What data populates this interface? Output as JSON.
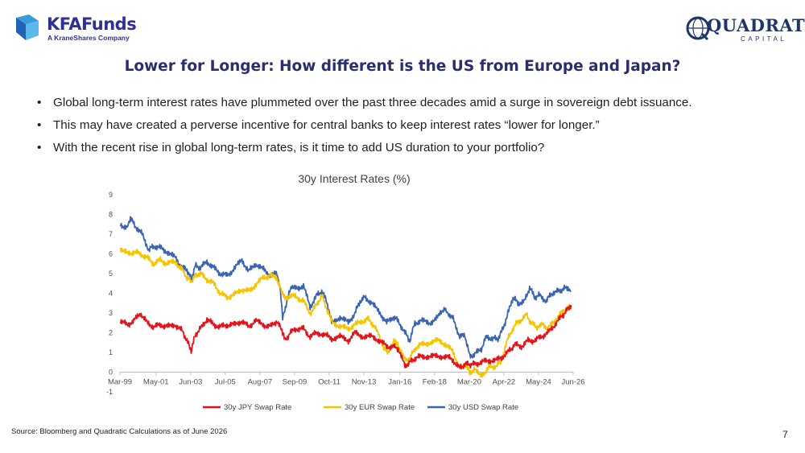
{
  "branding": {
    "left_logo_name": "KFAFunds",
    "left_logo_tagline": "A KraneShares Company",
    "right_logo_name": "QUADRATIC",
    "right_logo_tagline": "CAPITAL"
  },
  "slide": {
    "title": "Lower for Longer: How different is the US from Europe and Japan?",
    "bullets": [
      "Global long-term interest rates have plummeted over the past three decades amid a surge in sovereign debt issuance.",
      "This may have created a perverse incentive for central banks to keep interest rates “lower for longer.”",
      "With the recent rise in global long-term rates, is it time to add US duration to your portfolio?"
    ],
    "source": "Source: Bloomberg and Quadratic Calculations as of June 2026",
    "page_number": "7"
  },
  "colors": {
    "jpy": "#e3141b",
    "eur": "#f5c400",
    "usd": "#3b64b0",
    "title": "#2a2d6e",
    "logo": "#2e3192"
  },
  "chart_data": {
    "type": "line",
    "title": "30y Interest Rates (%)",
    "xlabel": "",
    "ylabel": "",
    "x_ticks": [
      "Mar-99",
      "May-01",
      "Jun-03",
      "Jul-05",
      "Aug-07",
      "Sep-09",
      "Oct-11",
      "Nov-13",
      "Jan-16",
      "Feb-18",
      "Mar-20",
      "Apr-22",
      "May-24",
      "Jun-26"
    ],
    "ylim": [
      -1,
      9
    ],
    "y_ticks": [
      "-1",
      "0",
      "1",
      "2",
      "3",
      "4",
      "5",
      "6",
      "7",
      "8",
      "9"
    ],
    "grid": false,
    "legend_position": "bottom",
    "x_is_decimal_year": true,
    "series": [
      {
        "name": "30y JPY Swap Rate",
        "color_key": "jpy",
        "points": [
          [
            1999.2,
            2.6
          ],
          [
            1999.6,
            2.4
          ],
          [
            2000.0,
            2.6
          ],
          [
            2000.4,
            3.0
          ],
          [
            2000.8,
            2.5
          ],
          [
            2001.2,
            2.3
          ],
          [
            2001.6,
            2.4
          ],
          [
            2002.0,
            2.3
          ],
          [
            2002.5,
            2.4
          ],
          [
            2002.9,
            2.1
          ],
          [
            2003.2,
            1.6
          ],
          [
            2003.45,
            1.1
          ],
          [
            2003.7,
            1.9
          ],
          [
            2004.0,
            2.2
          ],
          [
            2004.4,
            2.7
          ],
          [
            2004.8,
            2.4
          ],
          [
            2005.2,
            2.3
          ],
          [
            2005.6,
            2.4
          ],
          [
            2006.0,
            2.4
          ],
          [
            2006.5,
            2.6
          ],
          [
            2006.9,
            2.3
          ],
          [
            2007.3,
            2.6
          ],
          [
            2007.8,
            2.4
          ],
          [
            2008.2,
            2.3
          ],
          [
            2008.6,
            2.6
          ],
          [
            2008.9,
            2.1
          ],
          [
            2009.1,
            1.6
          ],
          [
            2009.4,
            2.0
          ],
          [
            2009.8,
            2.2
          ],
          [
            2010.2,
            2.2
          ],
          [
            2010.6,
            1.8
          ],
          [
            2011.0,
            2.0
          ],
          [
            2011.5,
            1.9
          ],
          [
            2011.9,
            1.7
          ],
          [
            2012.4,
            1.8
          ],
          [
            2012.9,
            1.6
          ],
          [
            2013.3,
            2.0
          ],
          [
            2013.8,
            1.8
          ],
          [
            2014.3,
            1.8
          ],
          [
            2014.8,
            1.6
          ],
          [
            2015.2,
            1.3
          ],
          [
            2015.6,
            1.3
          ],
          [
            2015.9,
            1.2
          ],
          [
            2016.3,
            0.3
          ],
          [
            2016.6,
            0.5
          ],
          [
            2016.9,
            0.7
          ],
          [
            2017.3,
            0.8
          ],
          [
            2017.8,
            0.8
          ],
          [
            2018.3,
            0.8
          ],
          [
            2018.8,
            0.8
          ],
          [
            2019.2,
            0.6
          ],
          [
            2019.6,
            0.2
          ],
          [
            2019.9,
            0.4
          ],
          [
            2020.2,
            0.4
          ],
          [
            2020.5,
            0.4
          ],
          [
            2020.9,
            0.5
          ],
          [
            2021.3,
            0.6
          ],
          [
            2021.8,
            0.6
          ],
          [
            2022.2,
            0.8
          ],
          [
            2022.6,
            1.1
          ],
          [
            2022.9,
            1.4
          ],
          [
            2023.3,
            1.3
          ],
          [
            2023.7,
            1.6
          ],
          [
            2024.1,
            1.6
          ],
          [
            2024.5,
            1.8
          ],
          [
            2024.9,
            2.0
          ],
          [
            2025.3,
            2.4
          ],
          [
            2025.7,
            2.8
          ],
          [
            2026.0,
            3.1
          ],
          [
            2026.3,
            3.4
          ]
        ]
      },
      {
        "name": "30y EUR Swap Rate",
        "color_key": "eur",
        "points": [
          [
            1999.2,
            6.3
          ],
          [
            1999.6,
            6.0
          ],
          [
            2000.0,
            6.1
          ],
          [
            2000.4,
            6.0
          ],
          [
            2000.8,
            5.8
          ],
          [
            2001.2,
            5.5
          ],
          [
            2001.6,
            5.7
          ],
          [
            2002.0,
            5.5
          ],
          [
            2002.5,
            5.6
          ],
          [
            2002.9,
            5.2
          ],
          [
            2003.2,
            4.8
          ],
          [
            2003.45,
            4.6
          ],
          [
            2003.7,
            4.9
          ],
          [
            2004.0,
            5.0
          ],
          [
            2004.4,
            4.7
          ],
          [
            2004.8,
            4.5
          ],
          [
            2005.2,
            4.0
          ],
          [
            2005.6,
            3.8
          ],
          [
            2006.0,
            3.9
          ],
          [
            2006.5,
            4.2
          ],
          [
            2006.9,
            4.1
          ],
          [
            2007.3,
            4.4
          ],
          [
            2007.8,
            4.8
          ],
          [
            2008.2,
            4.9
          ],
          [
            2008.6,
            4.8
          ],
          [
            2008.9,
            4.0
          ],
          [
            2009.1,
            3.7
          ],
          [
            2009.4,
            3.9
          ],
          [
            2009.8,
            3.8
          ],
          [
            2010.2,
            3.6
          ],
          [
            2010.6,
            3.0
          ],
          [
            2011.0,
            3.4
          ],
          [
            2011.3,
            3.9
          ],
          [
            2011.6,
            3.2
          ],
          [
            2011.9,
            2.6
          ],
          [
            2012.4,
            2.3
          ],
          [
            2012.9,
            2.2
          ],
          [
            2013.3,
            2.4
          ],
          [
            2013.8,
            2.6
          ],
          [
            2014.1,
            2.7
          ],
          [
            2014.5,
            2.3
          ],
          [
            2014.9,
            1.5
          ],
          [
            2015.3,
            0.9
          ],
          [
            2015.6,
            1.6
          ],
          [
            2015.9,
            1.4
          ],
          [
            2016.3,
            0.6
          ],
          [
            2016.6,
            0.7
          ],
          [
            2016.9,
            1.2
          ],
          [
            2017.3,
            1.4
          ],
          [
            2017.8,
            1.5
          ],
          [
            2018.3,
            1.6
          ],
          [
            2018.8,
            1.4
          ],
          [
            2019.2,
            1.0
          ],
          [
            2019.6,
            0.2
          ],
          [
            2019.9,
            0.4
          ],
          [
            2020.2,
            0.0
          ],
          [
            2020.5,
            0.1
          ],
          [
            2020.9,
            -0.1
          ],
          [
            2021.1,
            0.0
          ],
          [
            2021.4,
            0.3
          ],
          [
            2021.8,
            0.3
          ],
          [
            2022.1,
            0.6
          ],
          [
            2022.5,
            1.7
          ],
          [
            2022.9,
            2.4
          ],
          [
            2023.2,
            2.6
          ],
          [
            2023.6,
            2.9
          ],
          [
            2023.9,
            2.5
          ],
          [
            2024.2,
            2.3
          ],
          [
            2024.6,
            2.4
          ],
          [
            2024.9,
            2.2
          ],
          [
            2025.3,
            2.6
          ],
          [
            2025.7,
            3.0
          ],
          [
            2026.0,
            3.2
          ],
          [
            2026.3,
            3.3
          ]
        ]
      },
      {
        "name": "30y USD Swap Rate",
        "color_key": "usd",
        "points": [
          [
            1999.2,
            7.5
          ],
          [
            1999.6,
            7.3
          ],
          [
            1999.8,
            7.8
          ],
          [
            2000.1,
            7.4
          ],
          [
            2000.5,
            7.0
          ],
          [
            2000.9,
            6.2
          ],
          [
            2001.2,
            6.4
          ],
          [
            2001.6,
            6.3
          ],
          [
            2002.0,
            6.1
          ],
          [
            2002.5,
            5.8
          ],
          [
            2002.9,
            5.3
          ],
          [
            2003.2,
            5.2
          ],
          [
            2003.45,
            4.7
          ],
          [
            2003.7,
            5.4
          ],
          [
            2004.0,
            5.3
          ],
          [
            2004.4,
            5.6
          ],
          [
            2004.8,
            5.3
          ],
          [
            2005.2,
            5.0
          ],
          [
            2005.6,
            4.9
          ],
          [
            2006.0,
            5.2
          ],
          [
            2006.5,
            5.7
          ],
          [
            2006.9,
            5.1
          ],
          [
            2007.3,
            5.5
          ],
          [
            2007.8,
            5.2
          ],
          [
            2008.2,
            4.9
          ],
          [
            2008.6,
            5.0
          ],
          [
            2008.8,
            4.2
          ],
          [
            2008.95,
            2.7
          ],
          [
            2009.2,
            3.6
          ],
          [
            2009.5,
            4.4
          ],
          [
            2009.8,
            4.2
          ],
          [
            2010.2,
            4.4
          ],
          [
            2010.6,
            3.3
          ],
          [
            2011.0,
            3.9
          ],
          [
            2011.3,
            4.1
          ],
          [
            2011.6,
            3.6
          ],
          [
            2011.9,
            2.5
          ],
          [
            2012.4,
            2.8
          ],
          [
            2012.9,
            2.5
          ],
          [
            2013.3,
            3.0
          ],
          [
            2013.6,
            3.6
          ],
          [
            2013.9,
            3.8
          ],
          [
            2014.3,
            3.5
          ],
          [
            2014.8,
            3.0
          ],
          [
            2015.2,
            2.5
          ],
          [
            2015.6,
            2.8
          ],
          [
            2015.9,
            2.6
          ],
          [
            2016.3,
            2.0
          ],
          [
            2016.6,
            1.6
          ],
          [
            2016.9,
            2.5
          ],
          [
            2017.3,
            2.6
          ],
          [
            2017.8,
            2.5
          ],
          [
            2018.3,
            2.8
          ],
          [
            2018.7,
            3.3
          ],
          [
            2018.9,
            3.0
          ],
          [
            2019.2,
            2.7
          ],
          [
            2019.6,
            1.8
          ],
          [
            2019.9,
            1.9
          ],
          [
            2020.2,
            0.8
          ],
          [
            2020.5,
            0.9
          ],
          [
            2020.9,
            1.2
          ],
          [
            2021.2,
            1.8
          ],
          [
            2021.6,
            1.7
          ],
          [
            2021.9,
            1.7
          ],
          [
            2022.2,
            2.2
          ],
          [
            2022.5,
            3.0
          ],
          [
            2022.8,
            3.8
          ],
          [
            2023.1,
            3.5
          ],
          [
            2023.5,
            3.6
          ],
          [
            2023.8,
            4.3
          ],
          [
            2024.1,
            3.8
          ],
          [
            2024.4,
            3.9
          ],
          [
            2024.8,
            3.6
          ],
          [
            2025.1,
            4.0
          ],
          [
            2025.5,
            4.1
          ],
          [
            2025.8,
            4.2
          ],
          [
            2026.1,
            4.3
          ],
          [
            2026.3,
            4.1
          ]
        ]
      }
    ]
  }
}
